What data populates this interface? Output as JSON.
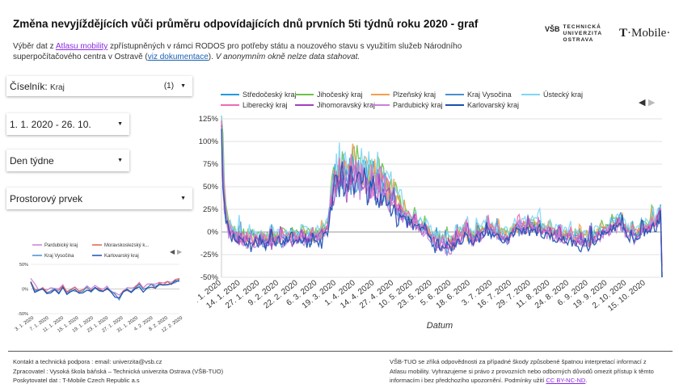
{
  "title": "Změna nevyjíždějících vůči průměru odpovídajících dnů prvních 5ti týdnů roku 2020 - graf",
  "subtitle": {
    "t1": "Výběr dat z ",
    "link1": "Atlasu mobility",
    "t2": " zpřístupněných v rámci RODOS pro potřeby státu a nouzového stavu s využitím služeb Národního superpočítačového centra v Ostravě (",
    "link2": "viz dokumentace",
    "t3": "). ",
    "note": "V anonymním okně nelze data stahovat."
  },
  "logos": {
    "vsb_mark": "VŠB",
    "vsb_line1": "TECHNICKÁ",
    "vsb_line2": "UNIVERZITA",
    "vsb_line3": "OSTRAVA",
    "tmobile_t": "T",
    "tmobile_rest": "·Mobile·"
  },
  "filters": {
    "ciselnik_label": "Číselník:",
    "ciselnik_value": "Kraj",
    "ciselnik_count": "(1)",
    "date_range": "1. 1. 2020 - 26. 10.",
    "den_tydne": "Den týdne",
    "prostorovy_prvek": "Prostorový prvek"
  },
  "footer": {
    "left1": "Kontakt a technická podpora : email: univerzita@vsb.cz",
    "left2": "Zpracovatel : Vysoká škola báňská – Technická univerzita Ostrava (VŠB-TUO)",
    "left3": "Poskytovatel dat : T-Mobile Czech Republic a.s",
    "right": "VŠB-TUO se zříká odpovědnosti za případné škody způsobené špatnou interpretací informací z Atlasu mobility. Vyhrazujeme si právo z provozních nebo odborných důvodů omezit přístup k těmto informacím i bez předchozího upozornění. Podmínky užití ",
    "right_link": "CC BY-NC-ND",
    "right_end": "."
  },
  "colors": {
    "Středočeský kraj": "#1f9bdf",
    "Jihočeský kraj": "#6cc24a",
    "Plzeňský kraj": "#f5a04a",
    "Kraj Vysočina": "#4a8fd0",
    "Ústecký kraj": "#7fd6f5",
    "Liberecký kraj": "#f06ab0",
    "Jihomoravský kraj": "#a040c0",
    "Pardubický kraj": "#c980d8",
    "Karlovarský kraj": "#1a50b0",
    "Moravskoslezský kraj": "#e06050"
  },
  "chart_data": [
    {
      "type": "line",
      "title": "",
      "xlabel": "Datum",
      "ylabel": "",
      "ylim": [
        -50,
        125
      ],
      "yticks": [
        "125%",
        "100%",
        "75%",
        "50%",
        "25%",
        "0%",
        "-25%",
        "-50%"
      ],
      "ytick_values": [
        125,
        100,
        75,
        50,
        25,
        0,
        -25,
        -50
      ],
      "xlim_days": [
        0,
        299
      ],
      "x_ticks": [
        "1. 1. 2020",
        "14. 1. 2020",
        "27. 1. 2020",
        "9. 2. 2020",
        "22. 2. 2020",
        "6. 3. 2020",
        "19. 3. 2020",
        "1. 4. 2020",
        "14. 4. 2020",
        "27. 4. 2020",
        "10. 5. 2020",
        "23. 5. 2020",
        "5. 6. 2020",
        "18. 6. 2020",
        "3. 7. 2020",
        "16. 7. 2020",
        "29. 7. 2020",
        "11. 8. 2020",
        "24. 8. 2020",
        "6. 9. 2020",
        "19. 9. 2020",
        "2. 10. 2020",
        "15. 10. 2020"
      ],
      "x_tick_days": [
        0,
        13,
        26,
        39,
        52,
        65,
        78,
        91,
        104,
        117,
        130,
        143,
        156,
        169,
        184,
        197,
        210,
        223,
        236,
        249,
        262,
        275,
        288
      ],
      "legend": [
        "Středočeský kraj",
        "Jihočeský kraj",
        "Plzeňský kraj",
        "Kraj Vysočina",
        "Ústecký kraj",
        "Liberecký kraj",
        "Jihomoravský kraj",
        "Pardubický kraj",
        "Karlovarský kraj"
      ],
      "keypoints_day": [
        0,
        2,
        5,
        10,
        20,
        30,
        40,
        50,
        60,
        68,
        72,
        76,
        80,
        85,
        90,
        95,
        100,
        105,
        110,
        115,
        120,
        125,
        130,
        135,
        140,
        145,
        150,
        155,
        160,
        165,
        170,
        175,
        180,
        185,
        190,
        195,
        200,
        210,
        220,
        230,
        240,
        250,
        260,
        265,
        270,
        275,
        280,
        285,
        290,
        295,
        298,
        299
      ],
      "keypoints_value": [
        120,
        30,
        0,
        -5,
        -10,
        -10,
        -8,
        -5,
        -8,
        -5,
        5,
        50,
        60,
        55,
        65,
        60,
        55,
        55,
        45,
        35,
        25,
        15,
        10,
        5,
        0,
        -10,
        -12,
        -15,
        -10,
        0,
        -8,
        -5,
        5,
        0,
        -5,
        -5,
        5,
        5,
        0,
        -5,
        -8,
        -10,
        0,
        5,
        10,
        0,
        -5,
        0,
        5,
        10,
        20,
        -50
      ],
      "series_offsets": {
        "Středočeský kraj": 2,
        "Jihočeský kraj": 8,
        "Plzeňský kraj": 4,
        "Kraj Vysočina": 1,
        "Ústecký kraj": 12,
        "Liberecký kraj": 3,
        "Jihomoravský kraj": -2,
        "Pardubický kraj": -4,
        "Karlovarský kraj": -6
      }
    },
    {
      "type": "line",
      "title": "",
      "ylim": [
        -50,
        50
      ],
      "yticks": [
        "50%",
        "0%",
        "-50%"
      ],
      "ytick_values": [
        50,
        0,
        -50
      ],
      "x_ticks": [
        "3. 1. 2020",
        "7. 1. 2020",
        "11. 1. 2020",
        "15. 1. 2020",
        "19. 1. 2020",
        "23. 1. 2020",
        "27. 1. 2020",
        "31. 1. 2020",
        "4. 2. 2020",
        "8. 2. 2020",
        "12. 2. 2020"
      ],
      "legend": [
        "Pardubický kraj",
        "Moravskoslezský k...",
        "Kraj Vysočina",
        "Karlovarský kraj"
      ],
      "legend_colors": [
        "#c980d8",
        "#e06050",
        "#4a8fd0",
        "#1a50b0"
      ],
      "values_base": [
        18,
        2,
        -3,
        0,
        -6,
        -2,
        1,
        -4,
        3,
        -7,
        -3,
        0,
        -8,
        -2,
        2,
        -5,
        4,
        -3,
        -1,
        2,
        -5,
        -12,
        -18,
        -5,
        0,
        -4,
        2,
        8,
        -2,
        5,
        9,
        4,
        12,
        8,
        14,
        10,
        16,
        20
      ]
    }
  ]
}
